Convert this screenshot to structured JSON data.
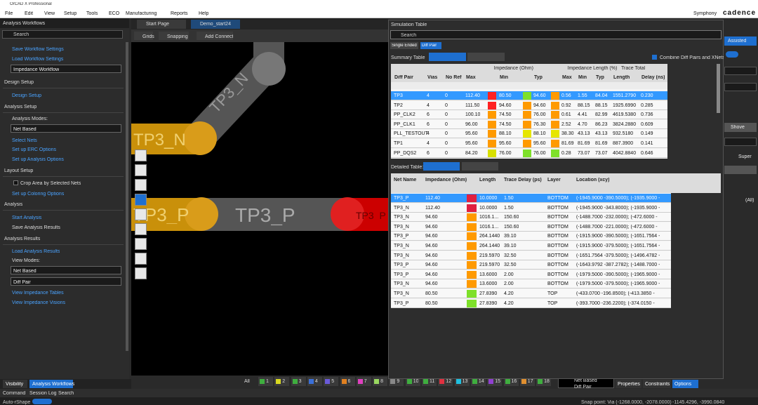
{
  "title_bar": "OrCAD X Professional",
  "menu": [
    "File",
    "Edit",
    "View",
    "Setup",
    "Tools",
    "ECO",
    "Manufacturing",
    "Reports",
    "Help"
  ],
  "brand": {
    "symphony": "Symphony",
    "cadence": "cadence"
  },
  "left_panel": {
    "title": "Analysis Workflows",
    "search": "Search",
    "items": [
      "Save Workflow Settings",
      "Load Workflow Settings",
      "Impedance Workflow",
      "Design Setup",
      "Design Setup",
      "Analysis Setup",
      "Analysis Modes:",
      "Net Based",
      "Select Nets",
      "Set up ERC Options",
      "Set up Analysis Options",
      "Layout Setup",
      "Crop Area by Selected Nets",
      "Set up Coloring Options",
      "Analysis",
      "Start Analysis",
      "Save Analysis Results",
      "Analysis Results",
      "Load Analysis Results",
      "View Modes:",
      "Net Based",
      "Diff Pair",
      "View Impedance Tables",
      "View Impedance Visions"
    ]
  },
  "tabs": [
    "Start Page",
    "Demo_start24"
  ],
  "toolbar": [
    "Grids",
    "Snapping",
    "Add Connect"
  ],
  "canvas_labels": [
    "TP3_N",
    "TP3_N",
    "TP3_P",
    "TP3_P",
    "TP3_P"
  ],
  "simulation_table": {
    "title": "Simulation Table",
    "search": "Search",
    "modes": [
      "Single Ended",
      "Diff Pair"
    ],
    "summary_label": "Summary Table",
    "combine_label": "Combine Diff Pairs and XNets",
    "summary": {
      "group_headers": [
        "Impedance (Ohm)",
        "Impedance Length (%)",
        "Trace Total"
      ],
      "headers": [
        "Diff Pair",
        "Vias",
        "No Ref",
        "Max",
        "Min",
        "Typ",
        "Max",
        "Min",
        "Typ",
        "Length",
        "Delay (ns)"
      ],
      "rows": [
        [
          "TP3",
          "4",
          "0",
          "112.40",
          "80.50",
          "94.60",
          "0.56",
          "1.55",
          "84.04",
          "1551.2790",
          "0.230"
        ],
        [
          "TP2",
          "4",
          "0",
          "111.50",
          "94.60",
          "94.60",
          "0.92",
          "88.15",
          "88.15",
          "1925.6990",
          "0.285"
        ],
        [
          "PP_CLK2",
          "6",
          "0",
          "100.10",
          "74.50",
          "76.00",
          "0.61",
          "4.41",
          "82.99",
          "4619.5380",
          "0.736"
        ],
        [
          "PP_CLK1",
          "6",
          "0",
          "96.00",
          "74.50",
          "76.30",
          "2.52",
          "4.70",
          "86.23",
          "3824.2880",
          "0.609"
        ],
        [
          "PLL_TESTOUT",
          "4",
          "0",
          "95.60",
          "88.10",
          "88.10",
          "38.30",
          "43.13",
          "43.13",
          "932.5180",
          "0.149"
        ],
        [
          "TP1",
          "4",
          "0",
          "95.60",
          "95.60",
          "95.60",
          "81.69",
          "81.69",
          "81.69",
          "887.3900",
          "0.141"
        ],
        [
          "PP_DQS2",
          "6",
          "0",
          "84.20",
          "76.00",
          "76.00",
          "0.28",
          "73.07",
          "73.07",
          "4042.8840",
          "0.646"
        ]
      ],
      "swatches": [
        [
          "#ff2222",
          "#7ee02a",
          "#ff9a00"
        ],
        [
          "#ff2222",
          "#ff9a00",
          "#ff9a00"
        ],
        [
          "#ff9a00",
          "#ff9a00",
          "#ff9a00"
        ],
        [
          "#ff9a00",
          "#ff9a00",
          "#ff9a00"
        ],
        [
          "#ff9a00",
          "#e6e600",
          "#e6e600"
        ],
        [
          "#ff9a00",
          "#ff9a00",
          "#ff9a00"
        ],
        [
          "#d8e000",
          "#7ee02a",
          "#7ee02a"
        ]
      ]
    },
    "detailed_label": "Detailed Table:",
    "detailed": {
      "headers": [
        "Net Name",
        "Impedance (Ohm)",
        "Length",
        "Trace Delay (ps)",
        "Layer",
        "Location (xcy)"
      ],
      "rows": [
        [
          "TP3_P",
          "112.40",
          "10.0000",
          "1.50",
          "BOTTOM",
          "(-1945.9000 -390.5000); (-1935.9000 -"
        ],
        [
          "TP3_N",
          "112.40",
          "10.0000",
          "1.50",
          "BOTTOM",
          "(-1945.9000 -343.8000); (-1935.9000 -"
        ],
        [
          "TP3_N",
          "94.60",
          "1016.1...",
          "150.60",
          "BOTTOM",
          "(-1488.7000 -232.0000); (-472.6000 -"
        ],
        [
          "TP3_N",
          "94.60",
          "1016.1...",
          "150.60",
          "BOTTOM",
          "(-1488.7000 -221.0000); (-472.6000 -"
        ],
        [
          "TP3_P",
          "94.60",
          "264.1440",
          "39.10",
          "BOTTOM",
          "(-1915.9000 -390.5000); (-1651.7564 -"
        ],
        [
          "TP3_N",
          "94.60",
          "264.1440",
          "39.10",
          "BOTTOM",
          "(-1915.9000 -379.5000); (-1651.7564 -"
        ],
        [
          "TP3_N",
          "94.60",
          "219.5970",
          "32.50",
          "BOTTOM",
          "(-1651.7564 -379.5000); (-1496.4782 -"
        ],
        [
          "TP3_P",
          "94.60",
          "219.5970",
          "32.50",
          "BOTTOM",
          "(-1643.9792 -387.2782); (-1488.7000 -"
        ],
        [
          "TP3_P",
          "94.60",
          "13.6000",
          "2.00",
          "BOTTOM",
          "(-1979.5000 -390.5000); (-1965.9000 -"
        ],
        [
          "TP3_N",
          "94.60",
          "13.6000",
          "2.00",
          "BOTTOM",
          "(-1979.5000 -379.5000); (-1965.9000 -"
        ],
        [
          "TP3_N",
          "80.50",
          "27.8390",
          "4.20",
          "TOP",
          "(-433.0700 -196.8500); (-413.3850 -"
        ],
        [
          "TP3_P",
          "80.50",
          "27.8390",
          "4.20",
          "TOP",
          "(-393.7000 -236.2200); (-374.0150 -"
        ]
      ],
      "swatches": [
        "#e02040",
        "#e02040",
        "#ff9a00",
        "#ff9a00",
        "#ff9a00",
        "#ff9a00",
        "#ff9a00",
        "#ff9a00",
        "#ff9a00",
        "#ff9a00",
        "#7ee02a",
        "#7ee02a"
      ]
    }
  },
  "right_strip": [
    "Assisted",
    "Shove",
    "Super",
    "(All)"
  ],
  "layer_bar": {
    "all": "All",
    "layers": [
      "1",
      "2",
      "3",
      "4",
      "5",
      "6",
      "7",
      "8",
      "9",
      "10",
      "11",
      "12",
      "13",
      "14",
      "15",
      "16",
      "17",
      "18"
    ],
    "layer_colors": [
      "#3fae3f",
      "#d8d820",
      "#3fae3f",
      "#3a6fd8",
      "#6a5ad8",
      "#e08020",
      "#e040c0",
      "#9ad860",
      "#888888",
      "#3fae3f",
      "#3fae3f",
      "#e03040",
      "#20c0e0",
      "#3fae3f",
      "#9040d0",
      "#3fae3f",
      "#e09030",
      "#3fae3f"
    ],
    "mode": [
      "Net Based",
      "Diff Pair"
    ]
  },
  "bottom_tabs": [
    "Properties",
    "Constraints",
    "Options"
  ],
  "left_tabs": [
    "Visibility",
    "Analysis Workflows"
  ],
  "console_tabs": [
    "Command",
    "Session Log",
    "Search"
  ],
  "status": [
    "Auto-rShape",
    "Snap point: Via (-1268.0000, -2078.0000)",
    "-1145.4296, -3990.0840"
  ]
}
